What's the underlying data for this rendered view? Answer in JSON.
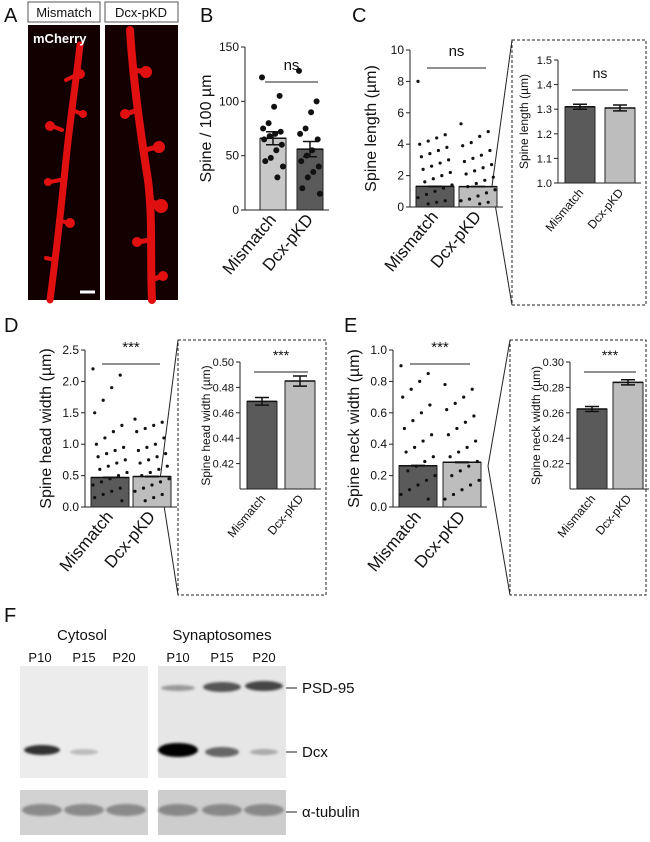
{
  "figure": {
    "letters": [
      "A",
      "B",
      "C",
      "D",
      "E",
      "F"
    ],
    "imaging": {
      "conditions": [
        "Mismatch",
        "Dcx-pKD"
      ],
      "stain": "mCherry"
    },
    "blot": {
      "groups": [
        "Cytosol",
        "Synaptosomes"
      ],
      "lanes": [
        "P10",
        "P15",
        "P20",
        "P10",
        "P15",
        "P20"
      ],
      "proteins": [
        "PSD-95",
        "Dcx",
        "α-tubulin"
      ]
    }
  },
  "chart_data": [
    {
      "type": "bar",
      "categories": [
        "Mismatch",
        "Dcx-pKD"
      ],
      "values": [
        66,
        56
      ],
      "errors": [
        6,
        7
      ],
      "colors": [
        "#c8c8c8",
        "#5a5a5a"
      ],
      "ylabel": "Spine / 100 µm",
      "annotation": "ns",
      "ylim": [
        0,
        150
      ],
      "yticks": [
        0,
        50,
        100,
        150
      ],
      "points": [
        [
          122,
          105,
          95,
          80,
          75,
          72,
          70,
          68,
          65,
          60,
          55,
          48,
          45,
          40,
          30
        ],
        [
          128,
          100,
          90,
          75,
          70,
          65,
          55,
          50,
          45,
          40,
          35,
          30,
          20,
          15
        ]
      ]
    },
    {
      "type": "bar",
      "categories": [
        "Mismatch",
        "Dcx-pKD"
      ],
      "values": [
        1.31,
        1.3
      ],
      "errors": [
        0.01,
        0.01
      ],
      "colors": [
        "#5a5a5a",
        "#bdbdbd"
      ],
      "ylabel": "Spine length (µm)",
      "annotation": "ns",
      "ylim": [
        0,
        10
      ],
      "yticks": [
        0,
        2,
        4,
        6,
        8,
        10
      ],
      "points": [
        [
          8,
          4.6,
          4.4,
          4.2,
          4,
          3.8,
          3.6,
          3.4,
          3.2,
          3,
          2.8,
          2.6,
          2.4,
          2.2,
          2,
          1.8,
          1.6,
          1.4,
          1.2,
          1,
          0.8,
          0.6,
          0.4,
          0.3,
          0.2
        ],
        [
          5.3,
          4.8,
          4.5,
          4.1,
          3.9,
          3.6,
          3.3,
          3.1,
          2.9,
          2.7,
          2.5,
          2.3,
          2.1,
          1.9,
          1.7,
          1.5,
          1.3,
          1.1,
          0.9,
          0.7,
          0.5,
          0.4,
          0.3,
          0.2
        ]
      ]
    },
    {
      "type": "bar",
      "categories": [
        "Mismatch",
        "Dcx-pKD"
      ],
      "values": [
        1.31,
        1.305
      ],
      "errors": [
        0.01,
        0.012
      ],
      "colors": [
        "#5a5a5a",
        "#bdbdbd"
      ],
      "ylabel": "Spine length (µm)",
      "annotation": "ns",
      "ylim": [
        1,
        1.5
      ],
      "yticks": [
        {
          "value": 1,
          "label": "1.0"
        },
        1.1,
        1.2,
        1.3,
        1.4,
        1.5
      ]
    },
    {
      "type": "bar",
      "categories": [
        "Mismatch",
        "Dcx-pKD"
      ],
      "values": [
        0.47,
        0.485
      ],
      "errors": [
        0.003,
        0.004
      ],
      "colors": [
        "#5a5a5a",
        "#bdbdbd"
      ],
      "ylabel": "Spine head width (µm)",
      "annotation": "***",
      "ylim": [
        0,
        2.5
      ],
      "yticks": [
        {
          "value": 0,
          "label": "0.0"
        },
        0.5,
        {
          "value": 1,
          "label": "1.0"
        },
        1.5,
        {
          "value": 2,
          "label": "2.0"
        },
        2.5
      ],
      "points": [
        [
          2.2,
          2.1,
          1.9,
          1.7,
          1.5,
          1.3,
          1.2,
          1.1,
          1,
          0.95,
          0.9,
          0.85,
          0.8,
          0.75,
          0.7,
          0.65,
          0.6,
          0.55,
          0.5,
          0.45,
          0.4,
          0.35,
          0.3,
          0.25,
          0.2,
          0.15,
          0.1
        ],
        [
          1.4,
          1.35,
          1.3,
          1.25,
          1.2,
          1.1,
          1,
          0.95,
          0.9,
          0.85,
          0.8,
          0.75,
          0.7,
          0.65,
          0.6,
          0.55,
          0.5,
          0.45,
          0.4,
          0.35,
          0.3,
          0.25,
          0.2,
          0.15,
          0.1
        ]
      ]
    },
    {
      "type": "bar",
      "categories": [
        "Mismatch",
        "Dcx-pKD"
      ],
      "values": [
        0.469,
        0.485
      ],
      "errors": [
        0.003,
        0.004
      ],
      "colors": [
        "#5a5a5a",
        "#bdbdbd"
      ],
      "ylabel": "Spine head width (µm)",
      "annotation": "***",
      "ylim": [
        0.4,
        0.5
      ],
      "yticks": [
        0.42,
        0.44,
        0.46,
        0.48,
        {
          "value": 0.5,
          "label": "0.50"
        }
      ]
    },
    {
      "type": "bar",
      "categories": [
        "Mismatch",
        "Dcx-pKD"
      ],
      "values": [
        0.263,
        0.285
      ],
      "errors": [
        0.002,
        0.002
      ],
      "colors": [
        "#5a5a5a",
        "#bdbdbd"
      ],
      "ylabel": "Spine neck width (µm)",
      "annotation": "***",
      "ylim": [
        0,
        1
      ],
      "yticks": [
        {
          "value": 0,
          "label": "0.0"
        },
        0.2,
        0.4,
        0.6,
        0.8,
        {
          "value": 1,
          "label": "1.0"
        }
      ],
      "points": [
        [
          0.9,
          0.85,
          0.8,
          0.75,
          0.7,
          0.65,
          0.6,
          0.55,
          0.5,
          0.46,
          0.42,
          0.38,
          0.35,
          0.32,
          0.29,
          0.26,
          0.23,
          0.2,
          0.17,
          0.14,
          0.11,
          0.08,
          0.05
        ],
        [
          0.78,
          0.75,
          0.7,
          0.66,
          0.62,
          0.58,
          0.54,
          0.5,
          0.46,
          0.42,
          0.38,
          0.35,
          0.32,
          0.29,
          0.26,
          0.23,
          0.2,
          0.17,
          0.14,
          0.11,
          0.08,
          0.05
        ]
      ]
    },
    {
      "type": "bar",
      "categories": [
        "Mismatch",
        "Dcx-pKD"
      ],
      "values": [
        0.263,
        0.284
      ],
      "errors": [
        0.002,
        0.002
      ],
      "colors": [
        "#5a5a5a",
        "#bdbdbd"
      ],
      "ylabel": "Spine neck width (µm)",
      "annotation": "***",
      "ylim": [
        0.2,
        0.3
      ],
      "yticks": [
        0.22,
        0.24,
        0.26,
        0.28,
        {
          "value": 0.3,
          "label": "0.30"
        }
      ]
    }
  ]
}
